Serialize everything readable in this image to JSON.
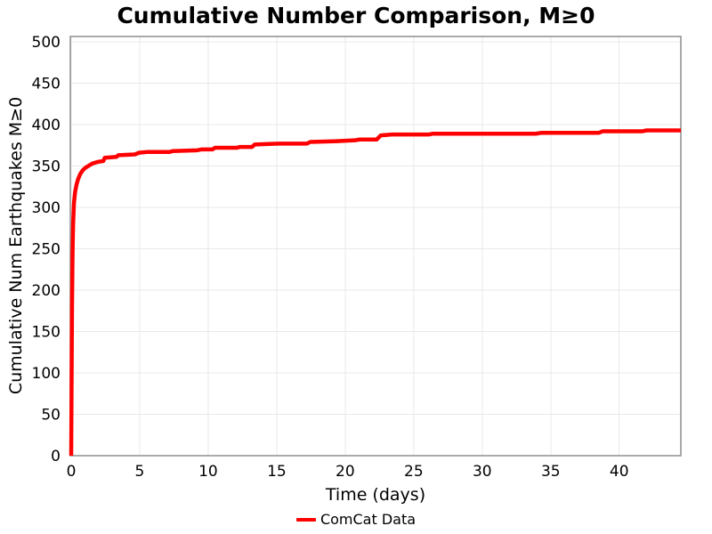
{
  "page": {
    "background": "#ffffff",
    "text_color": "#000000"
  },
  "chart_data": {
    "type": "line",
    "title": "Cumulative Number Comparison, M≥0",
    "xlabel": "Time (days)",
    "ylabel": "Cumulative Num Earthquakes M≥0",
    "xlim": [
      0,
      44.5
    ],
    "ylim": [
      0,
      500
    ],
    "xticks": [
      0,
      5,
      10,
      15,
      20,
      25,
      30,
      35,
      40
    ],
    "yticks": [
      0,
      50,
      100,
      150,
      200,
      250,
      300,
      350,
      400,
      450,
      500
    ],
    "grid": true,
    "grid_color": "#e8e8e8",
    "border_color": "#949494",
    "legend_position": "bottom-center",
    "series": [
      {
        "name": "ComCat Data",
        "color": "#ff0000",
        "linewidth": 4.5,
        "points": [
          [
            0,
            0
          ],
          [
            0.03,
            90
          ],
          [
            0.06,
            180
          ],
          [
            0.1,
            245
          ],
          [
            0.14,
            280
          ],
          [
            0.2,
            305
          ],
          [
            0.28,
            318
          ],
          [
            0.38,
            327
          ],
          [
            0.5,
            334
          ],
          [
            0.65,
            340
          ],
          [
            0.85,
            345
          ],
          [
            1.05,
            348
          ],
          [
            1.25,
            350
          ],
          [
            1.55,
            353
          ],
          [
            1.95,
            355
          ],
          [
            2.35,
            356
          ],
          [
            2.45,
            360
          ],
          [
            3.3,
            361
          ],
          [
            3.45,
            363
          ],
          [
            4.65,
            364
          ],
          [
            4.95,
            366
          ],
          [
            5.6,
            367
          ],
          [
            7.2,
            367
          ],
          [
            7.4,
            368
          ],
          [
            9.2,
            369
          ],
          [
            9.5,
            370
          ],
          [
            10.3,
            370
          ],
          [
            10.5,
            372
          ],
          [
            12.1,
            372
          ],
          [
            12.3,
            373
          ],
          [
            13.2,
            373
          ],
          [
            13.4,
            376
          ],
          [
            15.1,
            377
          ],
          [
            17.2,
            377
          ],
          [
            17.45,
            379
          ],
          [
            19.4,
            380
          ],
          [
            20.7,
            381
          ],
          [
            21.05,
            382
          ],
          [
            22.3,
            382
          ],
          [
            22.6,
            387
          ],
          [
            23.4,
            388
          ],
          [
            26.1,
            388
          ],
          [
            26.4,
            389
          ],
          [
            33.9,
            389
          ],
          [
            34.3,
            390
          ],
          [
            38.5,
            390
          ],
          [
            38.8,
            392
          ],
          [
            41.7,
            392
          ],
          [
            42.0,
            393
          ],
          [
            44.5,
            393
          ]
        ]
      }
    ]
  }
}
